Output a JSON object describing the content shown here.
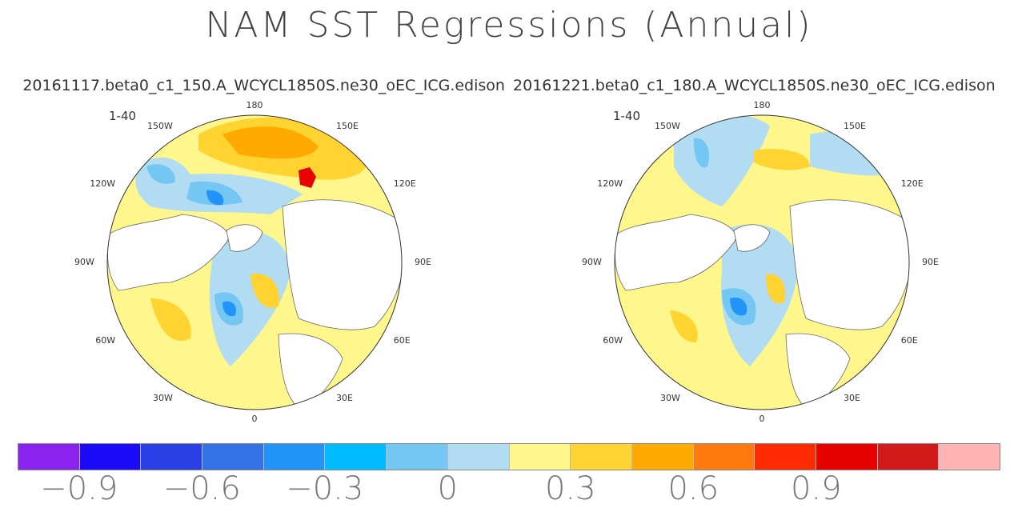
{
  "chart_data": {
    "type": "heatmap",
    "title": "NAM SST Regressions (Annual)",
    "panels": [
      {
        "case": "20161117.beta0_c1_150.A_WCYCL1850S.ne30_oEC_ICG.edison",
        "period": "1-40",
        "lon_labels": [
          "180",
          "150E",
          "120E",
          "90E",
          "60E",
          "30E",
          "0",
          "30W",
          "60W",
          "90W",
          "120W",
          "150W"
        ]
      },
      {
        "case": "20161221.beta0_c1_180.A_WCYCL1850S.ne30_oEC_ICG.edison",
        "period": "1-40",
        "lon_labels": [
          "180",
          "150E",
          "120E",
          "90E",
          "60E",
          "30E",
          "0",
          "30W",
          "60W",
          "90W",
          "120W",
          "150W"
        ]
      }
    ],
    "colorbar": {
      "colors": [
        "#8a22f0",
        "#1a0cf8",
        "#2a40e6",
        "#3272e6",
        "#2294f8",
        "#00bcff",
        "#74c7f2",
        "#b2dcf2",
        "#fff68c",
        "#ffd330",
        "#ffaa00",
        "#ff7a0c",
        "#ff2a00",
        "#e60000",
        "#d21a1a",
        "#ffb4b4"
      ],
      "tick_labels": [
        "−0.9",
        "−0.6",
        "−0.3",
        "0",
        "0.3",
        "0.6",
        "0.9"
      ],
      "tick_values": [
        -0.9,
        -0.6,
        -0.3,
        0,
        0.3,
        0.6,
        0.9
      ],
      "levels_start": -1.05,
      "level_step": 0.15
    }
  }
}
